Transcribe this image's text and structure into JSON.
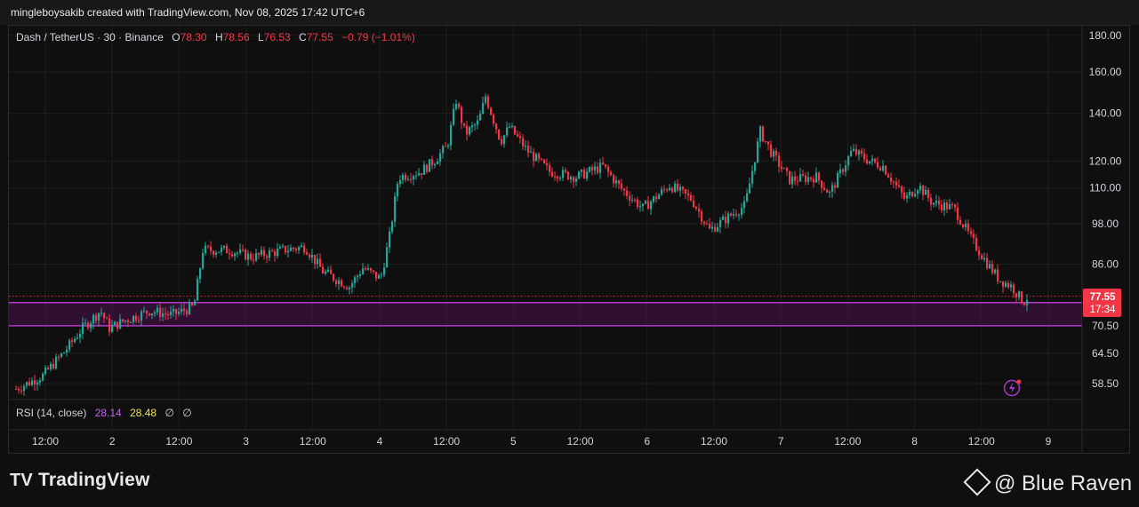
{
  "header": {
    "credit": "mingleboysakib created with TradingView.com, Nov 08, 2025 17:42 UTC+6"
  },
  "legend": {
    "symbol": "Dash / TetherUS · 30 · Binance",
    "o_label": "O",
    "o": "78.30",
    "h_label": "H",
    "h": "78.56",
    "l_label": "L",
    "l": "76.53",
    "c_label": "C",
    "c": "77.55",
    "change": "−0.79 (−1.01%)"
  },
  "rsi": {
    "label": "RSI (14, close)",
    "v1": "28.14",
    "v2": "28.48",
    "v3": "∅",
    "v4": "∅"
  },
  "footer": {
    "brand": "TradingView",
    "logo_mark": "TV",
    "watermark": "@ Blue Raven"
  },
  "colors": {
    "up": "#26a69a",
    "down": "#f23645",
    "zone": "#9c27b0",
    "background": "#0f0f0f",
    "rsi_line": "#c561e6"
  },
  "chart_data": {
    "type": "candlestick",
    "y_scale": "log",
    "ylim": [
      55,
      185
    ],
    "y_ticks": [
      "180.00",
      "160.00",
      "140.00",
      "120.00",
      "110.00",
      "98.00",
      "86.00",
      "70.50",
      "64.50",
      "58.50"
    ],
    "x_ticks": [
      "12:00",
      "2",
      "12:00",
      "3",
      "12:00",
      "4",
      "12:00",
      "5",
      "12:00",
      "6",
      "12:00",
      "7",
      "12:00",
      "8",
      "12:00",
      "9"
    ],
    "grid": true,
    "last_price": "77.55",
    "countdown": "17:34",
    "zone": {
      "from": 70.5,
      "to": 76.0
    },
    "close_path": [
      {
        "t": 0,
        "v": 57.5
      },
      {
        "t": 30,
        "v": 60
      },
      {
        "t": 55,
        "v": 65
      },
      {
        "t": 75,
        "v": 70
      },
      {
        "t": 95,
        "v": 74
      },
      {
        "t": 105,
        "v": 70
      },
      {
        "t": 120,
        "v": 71.5
      },
      {
        "t": 150,
        "v": 74
      },
      {
        "t": 175,
        "v": 73
      },
      {
        "t": 200,
        "v": 75
      },
      {
        "t": 210,
        "v": 90
      },
      {
        "t": 240,
        "v": 90
      },
      {
        "t": 265,
        "v": 88
      },
      {
        "t": 300,
        "v": 90
      },
      {
        "t": 325,
        "v": 91
      },
      {
        "t": 345,
        "v": 84
      },
      {
        "t": 375,
        "v": 80
      },
      {
        "t": 390,
        "v": 85
      },
      {
        "t": 410,
        "v": 82
      },
      {
        "t": 420,
        "v": 94
      },
      {
        "t": 430,
        "v": 114
      },
      {
        "t": 455,
        "v": 116
      },
      {
        "t": 470,
        "v": 120
      },
      {
        "t": 485,
        "v": 126
      },
      {
        "t": 495,
        "v": 146
      },
      {
        "t": 505,
        "v": 131
      },
      {
        "t": 520,
        "v": 136
      },
      {
        "t": 528,
        "v": 148
      },
      {
        "t": 545,
        "v": 128
      },
      {
        "t": 555,
        "v": 134
      },
      {
        "t": 575,
        "v": 124
      },
      {
        "t": 600,
        "v": 116
      },
      {
        "t": 630,
        "v": 114
      },
      {
        "t": 660,
        "v": 118
      },
      {
        "t": 680,
        "v": 110
      },
      {
        "t": 705,
        "v": 103
      },
      {
        "t": 735,
        "v": 111
      },
      {
        "t": 760,
        "v": 106
      },
      {
        "t": 780,
        "v": 96
      },
      {
        "t": 800,
        "v": 100
      },
      {
        "t": 820,
        "v": 104
      },
      {
        "t": 837,
        "v": 132
      },
      {
        "t": 850,
        "v": 123
      },
      {
        "t": 870,
        "v": 113
      },
      {
        "t": 900,
        "v": 114
      },
      {
        "t": 915,
        "v": 108
      },
      {
        "t": 940,
        "v": 124
      },
      {
        "t": 960,
        "v": 120
      },
      {
        "t": 975,
        "v": 118
      },
      {
        "t": 1000,
        "v": 106
      },
      {
        "t": 1015,
        "v": 111
      },
      {
        "t": 1030,
        "v": 105
      },
      {
        "t": 1055,
        "v": 103
      },
      {
        "t": 1075,
        "v": 93
      },
      {
        "t": 1090,
        "v": 87
      },
      {
        "t": 1105,
        "v": 82
      },
      {
        "t": 1120,
        "v": 80
      },
      {
        "t": 1133,
        "v": 76
      },
      {
        "t": 1138,
        "v": 77.55
      }
    ]
  }
}
